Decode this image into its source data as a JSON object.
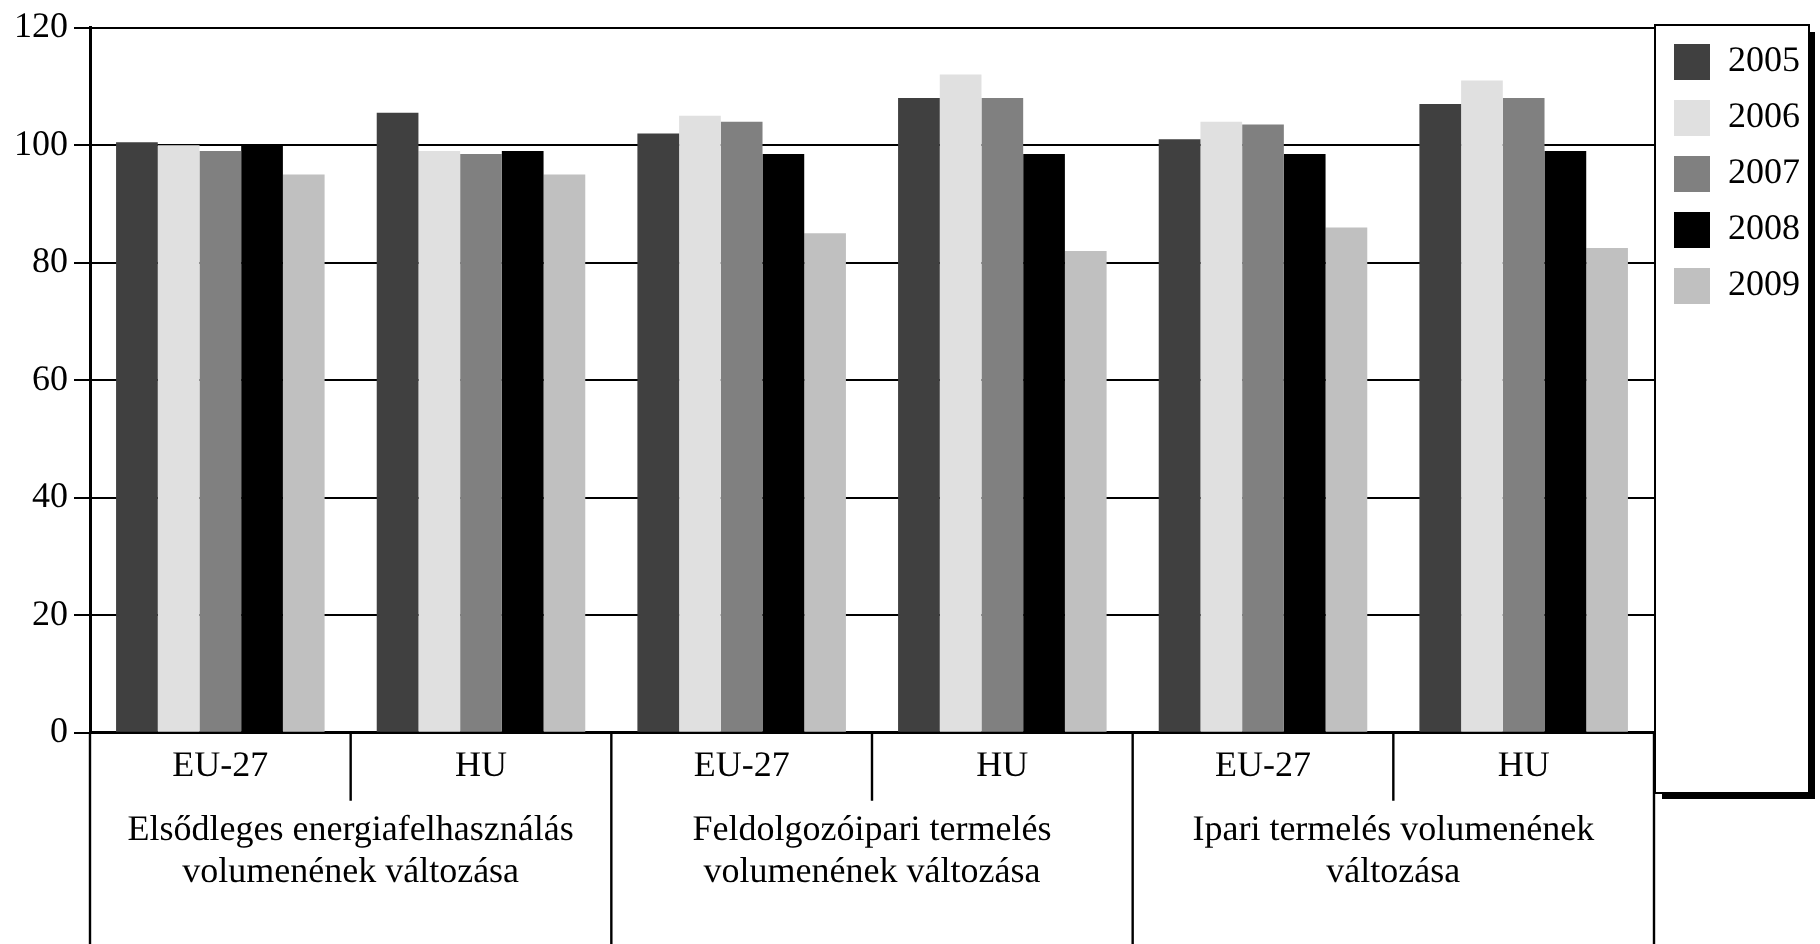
{
  "chart_data": {
    "type": "bar",
    "categories": [
      "EU-27",
      "HU",
      "EU-27",
      "HU",
      "EU-27",
      "HU"
    ],
    "series": [
      {
        "name": "2005",
        "color": "#404040",
        "values": [
          100.5,
          105.5,
          102,
          108,
          101,
          107
        ]
      },
      {
        "name": "2006",
        "color": "#e0e0e0",
        "values": [
          100,
          99,
          105,
          112,
          104,
          111
        ]
      },
      {
        "name": "2007",
        "color": "#808080",
        "values": [
          99,
          98.5,
          104,
          108,
          103.5,
          108
        ]
      },
      {
        "name": "2008",
        "color": "#000000",
        "values": [
          100,
          99,
          98.5,
          98.5,
          98.5,
          99
        ]
      },
      {
        "name": "2009",
        "color": "#c0c0c0",
        "values": [
          95,
          95,
          85,
          82,
          86,
          82.5
        ]
      }
    ],
    "annotations": [
      "Elsődleges energiafelhasználás volumenének változása",
      "Feldolgozóipari termelés volumenének változása",
      "Ipari termelés volumenének változása"
    ],
    "ylim": [
      0,
      120
    ],
    "yticks": [
      0,
      20,
      40,
      60,
      80,
      100,
      120
    ],
    "grid": "y",
    "legend": "right"
  }
}
